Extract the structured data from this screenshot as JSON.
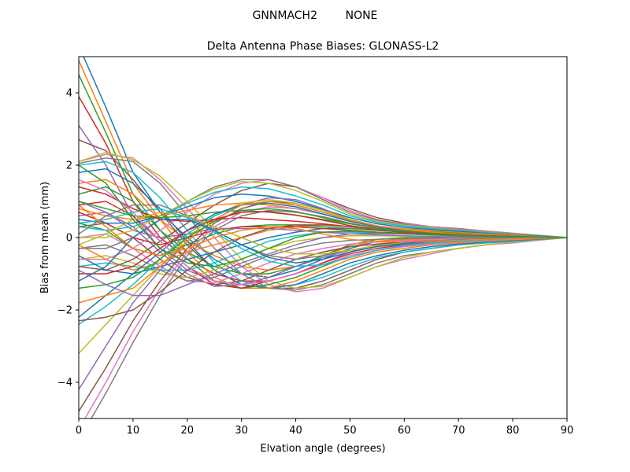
{
  "figure": {
    "suptitle": "GNNMACH2        NONE"
  },
  "chart_data": {
    "type": "line",
    "title": "Delta Antenna Phase Biases: GLONASS-L2",
    "xlabel": "Elvation angle (degrees)",
    "ylabel": "Bias from mean (mm)",
    "xlim": [
      0,
      90
    ],
    "ylim": [
      -5,
      5
    ],
    "xticks": [
      0,
      10,
      20,
      30,
      40,
      50,
      60,
      70,
      80,
      90
    ],
    "yticks": [
      -4,
      -2,
      0,
      2,
      4
    ],
    "xtick_labels": [
      "0",
      "10",
      "20",
      "30",
      "40",
      "50",
      "60",
      "70",
      "80",
      "90"
    ],
    "ytick_labels": [
      "−4",
      "−2",
      "0",
      "2",
      "4"
    ],
    "grid": false,
    "legend": "none",
    "colors": [
      "#1f77b4",
      "#ff7f0e",
      "#2ca02c",
      "#d62728",
      "#9467bd",
      "#8c564b",
      "#e377c2",
      "#7f7f7f",
      "#bcbd22",
      "#17becf"
    ],
    "x": [
      0,
      5,
      10,
      15,
      20,
      25,
      30,
      35,
      40,
      45,
      50,
      55,
      60,
      65,
      70,
      75,
      80,
      85,
      90
    ],
    "series": [
      {
        "values": [
          5.3,
          3.6,
          1.8,
          0.7,
          0.0,
          -0.6,
          -1.0,
          -1.1,
          -0.9,
          -0.6,
          -0.3,
          -0.1,
          -0.05,
          -0.05,
          -0.05,
          -0.04,
          -0.03,
          -0.02,
          0
        ]
      },
      {
        "values": [
          4.9,
          3.2,
          1.5,
          0.5,
          -0.1,
          -0.5,
          -0.8,
          -0.9,
          -0.8,
          -0.5,
          -0.25,
          -0.1,
          -0.05,
          -0.05,
          -0.04,
          -0.03,
          -0.02,
          -0.01,
          0
        ]
      },
      {
        "values": [
          4.5,
          2.9,
          1.2,
          0.2,
          -0.4,
          -0.8,
          -1.0,
          -1.0,
          -0.8,
          -0.5,
          -0.2,
          -0.05,
          0.0,
          0.0,
          0.0,
          0.0,
          0.0,
          0.0,
          0
        ]
      },
      {
        "values": [
          3.9,
          2.6,
          1.0,
          0.0,
          -0.6,
          -1.0,
          -1.2,
          -1.2,
          -1.0,
          -0.7,
          -0.4,
          -0.2,
          -0.1,
          -0.08,
          -0.06,
          -0.04,
          -0.03,
          -0.01,
          0
        ]
      },
      {
        "values": [
          3.1,
          2.0,
          0.6,
          -0.3,
          -0.9,
          -1.2,
          -1.3,
          -1.2,
          -1.0,
          -0.7,
          -0.4,
          -0.2,
          -0.1,
          -0.08,
          -0.05,
          -0.04,
          -0.02,
          -0.01,
          0
        ]
      },
      {
        "values": [
          2.7,
          2.4,
          1.6,
          0.7,
          -0.2,
          -0.9,
          -1.3,
          -1.4,
          -1.4,
          -1.2,
          -0.9,
          -0.6,
          -0.4,
          -0.3,
          -0.2,
          -0.15,
          -0.1,
          -0.05,
          0
        ]
      },
      {
        "values": [
          2.1,
          2.3,
          2.2,
          1.6,
          0.8,
          0.0,
          -0.8,
          -1.3,
          -1.5,
          -1.4,
          -1.1,
          -0.8,
          -0.6,
          -0.45,
          -0.3,
          -0.2,
          -0.15,
          -0.07,
          0
        ]
      },
      {
        "values": [
          2.05,
          2.2,
          2.1,
          1.5,
          0.6,
          -0.3,
          -1.0,
          -1.4,
          -1.45,
          -1.3,
          -1.0,
          -0.7,
          -0.5,
          -0.4,
          -0.3,
          -0.2,
          -0.12,
          -0.06,
          0
        ]
      },
      {
        "values": [
          2.1,
          2.35,
          2.15,
          1.7,
          1.0,
          0.2,
          -0.6,
          -1.2,
          -1.4,
          -1.35,
          -1.1,
          -0.8,
          -0.55,
          -0.4,
          -0.3,
          -0.2,
          -0.12,
          -0.06,
          0
        ]
      },
      {
        "values": [
          2.0,
          2.1,
          1.8,
          1.1,
          0.2,
          -0.7,
          -1.2,
          -1.4,
          -1.3,
          -1.1,
          -0.8,
          -0.55,
          -0.4,
          -0.3,
          -0.2,
          -0.15,
          -0.1,
          -0.05,
          0
        ]
      },
      {
        "values": [
          1.8,
          1.9,
          1.5,
          0.8,
          -0.1,
          -0.9,
          -1.3,
          -1.4,
          -1.3,
          -1.0,
          -0.7,
          -0.5,
          -0.35,
          -0.25,
          -0.18,
          -0.12,
          -0.08,
          -0.04,
          0
        ]
      },
      {
        "values": [
          1.5,
          1.6,
          1.2,
          0.5,
          -0.4,
          -1.1,
          -1.4,
          -1.4,
          -1.2,
          -0.9,
          -0.6,
          -0.4,
          -0.3,
          -0.2,
          -0.15,
          -0.1,
          -0.06,
          -0.03,
          0
        ]
      },
      {
        "values": [
          1.2,
          1.4,
          1.0,
          0.2,
          -0.6,
          -1.2,
          -1.4,
          -1.3,
          -1.1,
          -0.8,
          -0.5,
          -0.35,
          -0.25,
          -0.18,
          -0.12,
          -0.08,
          -0.05,
          -0.02,
          0
        ]
      },
      {
        "values": [
          0.9,
          1.0,
          0.6,
          -0.1,
          -0.8,
          -1.3,
          -1.4,
          -1.2,
          -1.0,
          -0.7,
          -0.45,
          -0.3,
          -0.2,
          -0.15,
          -0.1,
          -0.07,
          -0.04,
          -0.02,
          0
        ]
      },
      {
        "values": [
          0.6,
          0.7,
          0.3,
          -0.4,
          -1.0,
          -1.35,
          -1.3,
          -1.1,
          -0.8,
          -0.55,
          -0.35,
          -0.25,
          -0.18,
          -0.12,
          -0.08,
          -0.05,
          -0.03,
          -0.01,
          0
        ]
      },
      {
        "values": [
          0.3,
          0.4,
          0.0,
          -0.6,
          -1.1,
          -1.3,
          -1.2,
          -0.9,
          -0.6,
          -0.4,
          -0.25,
          -0.18,
          -0.12,
          -0.08,
          -0.05,
          -0.03,
          -0.02,
          -0.01,
          0
        ]
      },
      {
        "values": [
          0.0,
          0.1,
          -0.3,
          -0.8,
          -1.2,
          -1.25,
          -1.0,
          -0.7,
          -0.45,
          -0.3,
          -0.18,
          -0.12,
          -0.08,
          -0.06,
          -0.04,
          -0.02,
          -0.01,
          0.0,
          0
        ]
      },
      {
        "values": [
          -0.3,
          -0.2,
          -0.5,
          -0.9,
          -1.2,
          -1.1,
          -0.8,
          -0.5,
          -0.3,
          -0.15,
          -0.08,
          -0.05,
          -0.03,
          -0.02,
          -0.01,
          0.0,
          0.0,
          0.0,
          0
        ]
      },
      {
        "values": [
          -0.6,
          -0.5,
          -0.7,
          -1.0,
          -1.1,
          -0.9,
          -0.6,
          -0.3,
          -0.1,
          0.0,
          0.05,
          0.05,
          0.04,
          0.03,
          0.02,
          0.01,
          0.0,
          0.0,
          0
        ]
      },
      {
        "values": [
          -0.8,
          -0.7,
          -0.8,
          -0.9,
          -0.9,
          -0.7,
          -0.4,
          -0.1,
          0.05,
          0.15,
          0.15,
          0.12,
          0.1,
          0.08,
          0.05,
          0.03,
          0.02,
          0.01,
          0
        ]
      },
      {
        "values": [
          -0.5,
          -0.9,
          -1.0,
          -0.8,
          -0.6,
          -0.4,
          -0.2,
          0.0,
          0.15,
          0.25,
          0.25,
          0.2,
          0.15,
          0.1,
          0.07,
          0.05,
          0.03,
          0.01,
          0
        ]
      },
      {
        "values": [
          -0.2,
          -0.6,
          -0.9,
          -0.7,
          -0.4,
          -0.2,
          0.0,
          0.2,
          0.3,
          0.35,
          0.3,
          0.25,
          0.18,
          0.12,
          0.08,
          0.05,
          0.03,
          0.01,
          0
        ]
      },
      {
        "values": [
          0.4,
          0.2,
          -0.3,
          -0.5,
          -0.2,
          0.1,
          0.3,
          0.35,
          0.35,
          0.3,
          0.25,
          0.2,
          0.15,
          0.1,
          0.07,
          0.05,
          0.03,
          0.01,
          0
        ]
      },
      {
        "values": [
          0.7,
          0.4,
          0.0,
          -0.2,
          0.0,
          0.2,
          0.3,
          0.3,
          0.3,
          0.25,
          0.2,
          0.15,
          0.12,
          0.08,
          0.06,
          0.04,
          0.02,
          0.01,
          0
        ]
      },
      {
        "values": [
          1.0,
          0.7,
          0.2,
          0.0,
          0.1,
          0.25,
          0.25,
          0.25,
          0.2,
          0.15,
          0.1,
          0.08,
          0.05,
          0.03,
          0.02,
          0.01,
          0.0,
          0.0,
          0
        ]
      },
      {
        "values": [
          -0.8,
          -0.9,
          -0.6,
          -0.1,
          0.4,
          0.9,
          1.3,
          1.5,
          1.4,
          1.1,
          0.8,
          0.55,
          0.4,
          0.3,
          0.25,
          0.18,
          0.12,
          0.06,
          0
        ]
      },
      {
        "values": [
          -0.6,
          -0.6,
          -0.3,
          0.2,
          0.7,
          1.2,
          1.5,
          1.6,
          1.4,
          1.1,
          0.75,
          0.5,
          0.38,
          0.3,
          0.24,
          0.18,
          0.12,
          0.06,
          0
        ]
      },
      {
        "values": [
          -0.3,
          -0.3,
          0.0,
          0.5,
          1.0,
          1.4,
          1.6,
          1.6,
          1.4,
          1.05,
          0.7,
          0.48,
          0.36,
          0.28,
          0.22,
          0.16,
          0.11,
          0.05,
          0
        ]
      },
      {
        "values": [
          0.0,
          0.0,
          0.2,
          0.6,
          1.0,
          1.35,
          1.55,
          1.5,
          1.3,
          1.0,
          0.65,
          0.45,
          0.34,
          0.27,
          0.2,
          0.15,
          0.1,
          0.05,
          0
        ]
      },
      {
        "values": [
          0.3,
          0.2,
          0.3,
          0.6,
          0.95,
          1.25,
          1.4,
          1.35,
          1.15,
          0.9,
          0.6,
          0.42,
          0.32,
          0.25,
          0.19,
          0.14,
          0.09,
          0.05,
          0
        ]
      },
      {
        "values": [
          0.5,
          0.4,
          0.4,
          0.6,
          0.85,
          1.1,
          1.2,
          1.15,
          1.0,
          0.78,
          0.55,
          0.38,
          0.28,
          0.22,
          0.17,
          0.12,
          0.08,
          0.04,
          0
        ]
      },
      {
        "values": [
          0.8,
          0.6,
          0.5,
          0.6,
          0.75,
          0.9,
          0.95,
          0.9,
          0.8,
          0.65,
          0.45,
          0.32,
          0.24,
          0.19,
          0.14,
          0.1,
          0.07,
          0.03,
          0
        ]
      },
      {
        "values": [
          1.0,
          0.8,
          0.6,
          0.55,
          0.6,
          0.7,
          0.75,
          0.7,
          0.62,
          0.5,
          0.38,
          0.28,
          0.2,
          0.16,
          0.12,
          0.08,
          0.05,
          0.03,
          0
        ]
      },
      {
        "values": [
          1.4,
          1.2,
          0.8,
          0.5,
          0.45,
          0.5,
          0.55,
          0.5,
          0.45,
          0.38,
          0.3,
          0.22,
          0.16,
          0.12,
          0.09,
          0.06,
          0.04,
          0.02,
          0
        ]
      },
      {
        "values": [
          -4.2,
          -3.0,
          -1.8,
          -0.9,
          -0.1,
          0.5,
          0.9,
          1.1,
          1.05,
          0.8,
          0.5,
          0.32,
          0.2,
          0.14,
          0.1,
          0.07,
          0.04,
          0.02,
          0
        ]
      },
      {
        "values": [
          -4.8,
          -3.6,
          -2.3,
          -1.2,
          -0.3,
          0.4,
          0.8,
          1.0,
          0.95,
          0.75,
          0.5,
          0.3,
          0.2,
          0.14,
          0.1,
          0.07,
          0.04,
          0.02,
          0
        ]
      },
      {
        "values": [
          -5.3,
          -4.0,
          -2.6,
          -1.4,
          -0.4,
          0.3,
          0.7,
          0.85,
          0.8,
          0.65,
          0.45,
          0.28,
          0.18,
          0.12,
          0.08,
          0.06,
          0.04,
          0.02,
          0
        ]
      },
      {
        "values": [
          -5.6,
          -4.3,
          -2.9,
          -1.6,
          -0.5,
          0.2,
          0.6,
          0.75,
          0.7,
          0.58,
          0.4,
          0.26,
          0.16,
          0.11,
          0.08,
          0.05,
          0.03,
          0.01,
          0
        ]
      },
      {
        "values": [
          -3.2,
          -2.4,
          -1.6,
          -0.8,
          0.0,
          0.6,
          0.95,
          1.05,
          0.95,
          0.75,
          0.5,
          0.32,
          0.22,
          0.15,
          0.1,
          0.07,
          0.04,
          0.02,
          0
        ]
      },
      {
        "values": [
          -2.4,
          -1.9,
          -1.3,
          -0.6,
          0.1,
          0.6,
          0.9,
          1.0,
          0.9,
          0.7,
          0.48,
          0.32,
          0.22,
          0.15,
          0.1,
          0.07,
          0.04,
          0.02,
          0
        ]
      },
      {
        "values": [
          -2.2,
          -1.6,
          -1.0,
          -0.4,
          0.2,
          0.65,
          0.9,
          0.95,
          0.85,
          0.65,
          0.45,
          0.3,
          0.2,
          0.14,
          0.1,
          0.06,
          0.04,
          0.02,
          0
        ]
      },
      {
        "values": [
          -1.8,
          -1.6,
          -1.4,
          -0.8,
          -0.1,
          0.5,
          0.9,
          1.0,
          0.9,
          0.7,
          0.48,
          0.32,
          0.22,
          0.15,
          0.1,
          0.07,
          0.04,
          0.02,
          0
        ]
      },
      {
        "values": [
          -1.4,
          -1.3,
          -1.1,
          -0.6,
          0.0,
          0.45,
          0.75,
          0.8,
          0.72,
          0.55,
          0.38,
          0.26,
          0.18,
          0.12,
          0.08,
          0.05,
          0.03,
          0.01,
          0
        ]
      },
      {
        "values": [
          -1.0,
          -1.0,
          -0.8,
          -0.3,
          0.2,
          0.5,
          0.7,
          0.72,
          0.62,
          0.48,
          0.33,
          0.22,
          0.15,
          0.1,
          0.07,
          0.05,
          0.03,
          0.01,
          0
        ]
      },
      {
        "values": [
          -0.9,
          -1.3,
          -1.6,
          -1.6,
          -1.3,
          -1.0,
          -0.7,
          -0.45,
          -0.2,
          0.0,
          0.1,
          0.12,
          0.1,
          0.08,
          0.06,
          0.04,
          0.02,
          0.01,
          0
        ]
      },
      {
        "values": [
          -2.3,
          -2.2,
          -2.0,
          -1.5,
          -0.9,
          -0.4,
          0.0,
          0.25,
          0.35,
          0.35,
          0.3,
          0.22,
          0.15,
          0.1,
          0.07,
          0.05,
          0.03,
          0.01,
          0
        ]
      },
      {
        "values": [
          1.6,
          1.3,
          0.7,
          -0.1,
          -0.8,
          -1.2,
          -1.3,
          -1.2,
          -1.0,
          -0.75,
          -0.5,
          -0.35,
          -0.25,
          -0.18,
          -0.12,
          -0.08,
          -0.05,
          -0.02,
          0
        ]
      },
      {
        "values": [
          0.1,
          0.6,
          0.9,
          0.9,
          0.6,
          0.2,
          -0.2,
          -0.5,
          -0.6,
          -0.5,
          -0.35,
          -0.22,
          -0.15,
          -0.1,
          -0.06,
          -0.04,
          -0.02,
          -0.01,
          0
        ]
      },
      {
        "values": [
          -0.2,
          0.1,
          0.5,
          0.7,
          0.6,
          0.3,
          0.0,
          -0.3,
          -0.45,
          -0.45,
          -0.35,
          -0.22,
          -0.15,
          -0.1,
          -0.06,
          -0.04,
          -0.02,
          -0.01,
          0
        ]
      },
      {
        "values": [
          0.4,
          0.5,
          0.7,
          0.8,
          0.55,
          0.15,
          -0.3,
          -0.65,
          -0.8,
          -0.75,
          -0.55,
          -0.35,
          -0.22,
          -0.15,
          -0.1,
          -0.06,
          -0.03,
          -0.01,
          0
        ]
      },
      {
        "values": [
          -1.2,
          -0.8,
          0.0,
          0.5,
          0.5,
          0.2,
          -0.2,
          -0.55,
          -0.7,
          -0.6,
          -0.4,
          -0.25,
          -0.16,
          -0.1,
          -0.06,
          -0.04,
          -0.02,
          -0.01,
          0
        ]
      },
      {
        "values": [
          0.9,
          0.3,
          -0.3,
          -0.5,
          -0.3,
          0.0,
          0.2,
          0.3,
          0.25,
          0.1,
          -0.05,
          -0.12,
          -0.12,
          -0.1,
          -0.07,
          -0.05,
          -0.03,
          -0.01,
          0
        ]
      },
      {
        "values": [
          2.0,
          1.5,
          0.5,
          -0.3,
          -0.7,
          -0.8,
          -0.6,
          -0.3,
          0.0,
          0.15,
          0.18,
          0.14,
          0.1,
          0.07,
          0.05,
          0.03,
          0.02,
          0.01,
          0
        ]
      }
    ]
  }
}
